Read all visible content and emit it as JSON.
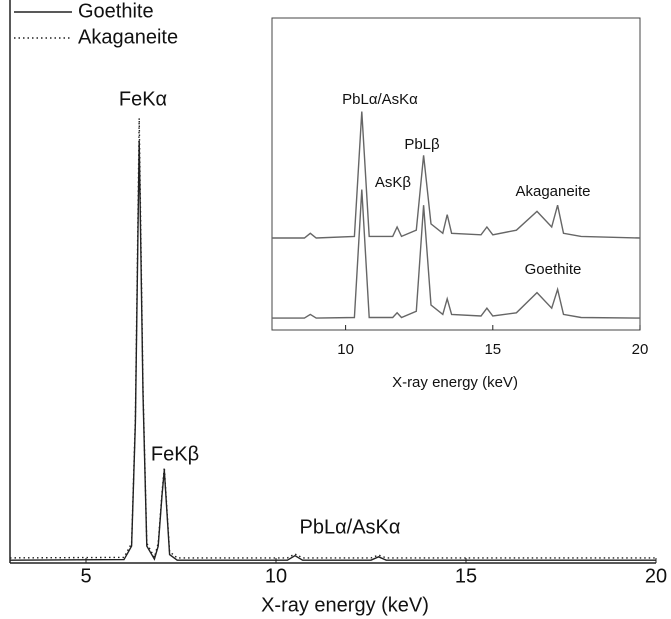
{
  "chart_data": [
    {
      "type": "line",
      "x_label": "X-ray energy (keV)",
      "x": [
        3,
        6.0,
        6.2,
        6.3,
        6.4,
        6.5,
        6.6,
        6.8,
        6.9,
        7.0,
        7.06,
        7.12,
        7.2,
        7.4,
        10.3,
        10.5,
        10.7,
        12.5,
        12.7,
        12.9,
        20
      ],
      "series": [
        {
          "name": "Goethite",
          "color": "#222222",
          "dash": "solid",
          "values": [
            0.5,
            0.6,
            3,
            25,
            75,
            30,
            3,
            0.7,
            3,
            12,
            16.5,
            10,
            1.5,
            0.5,
            0.5,
            1.3,
            0.5,
            0.5,
            1.1,
            0.5,
            0.5
          ]
        },
        {
          "name": "Akaganeite",
          "color": "#222222",
          "dash": "dotted",
          "values": [
            0.9,
            1,
            3.5,
            26,
            79,
            31,
            3.5,
            1,
            3.5,
            12.5,
            17,
            10.5,
            2,
            0.9,
            0.9,
            1.6,
            0.9,
            0.9,
            1.4,
            0.9,
            0.9
          ]
        }
      ],
      "annotations": [
        "FeKα",
        "FeKβ",
        "PbLα/AsKα"
      ],
      "xlim": [
        3,
        20
      ],
      "xticks": [
        5,
        10,
        15,
        20
      ],
      "ylim": [
        0,
        100
      ],
      "legend": "top-left"
    },
    {
      "type": "line",
      "x_label": "X-ray energy (keV)",
      "x": [
        7.5,
        8.6,
        8.8,
        9.0,
        10.3,
        10.55,
        10.8,
        11.6,
        11.75,
        11.9,
        12.4,
        12.65,
        12.9,
        13.3,
        13.45,
        13.6,
        14.6,
        14.8,
        15.0,
        15.8,
        16.5,
        17.0,
        17.2,
        17.4,
        18,
        20
      ],
      "series": [
        {
          "name": "Goethite",
          "color": "#666666",
          "values": [
            3.8,
            3.8,
            5,
            3.8,
            4,
            45,
            4,
            4,
            5.5,
            4,
            6,
            40,
            8,
            5,
            10,
            5,
            4.5,
            7,
            4.5,
            5.5,
            12,
            7,
            13,
            5,
            4,
            3.8
          ]
        },
        {
          "name": "Akaganeite",
          "color": "#666666",
          "values": [
            29.5,
            29.5,
            31,
            29.5,
            30,
            70,
            30,
            30,
            33,
            30,
            32,
            56,
            34,
            31,
            37,
            31,
            30.5,
            33,
            30.5,
            32,
            38,
            33,
            40,
            31,
            30,
            29.5
          ]
        }
      ],
      "annotations": [
        "PbLα/AsKα",
        "PbLβ",
        "AsKβ"
      ],
      "xlim": [
        7.5,
        20
      ],
      "xticks": [
        10,
        15,
        20
      ],
      "ylim": [
        0,
        100
      ]
    }
  ]
}
